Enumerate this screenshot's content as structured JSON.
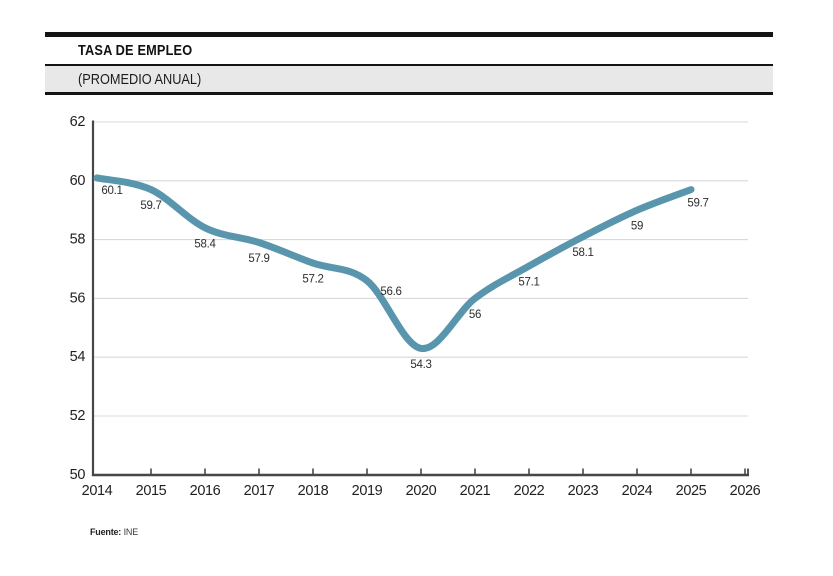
{
  "header": {
    "title": "TASA DE EMPLEO",
    "subtitle": "(PROMEDIO ANUAL)"
  },
  "source": {
    "label": "Fuente:",
    "value": "INE"
  },
  "chart_data": {
    "type": "line",
    "title": "TASA DE EMPLEO (PROMEDIO ANUAL)",
    "x": [
      2014,
      2015,
      2016,
      2017,
      2018,
      2019,
      2020,
      2021,
      2022,
      2023,
      2024,
      2025
    ],
    "values": [
      60.1,
      59.7,
      58.4,
      57.9,
      57.2,
      56.6,
      54.3,
      56,
      57.1,
      58.1,
      59,
      59.7
    ],
    "point_labels": [
      "60.1",
      "59.7",
      "58.4",
      "57.9",
      "57.2",
      "56.6",
      "54.3",
      "56",
      "57.1",
      "58.1",
      "59",
      "59.7"
    ],
    "x_tick_labels": [
      "2014",
      "2015",
      "2016",
      "2017",
      "2018",
      "2019",
      "2020",
      "2021",
      "2022",
      "2023",
      "2024",
      "2025",
      "2026"
    ],
    "x_ticks": [
      2014,
      2015,
      2016,
      2017,
      2018,
      2019,
      2020,
      2021,
      2022,
      2023,
      2024,
      2025,
      2026
    ],
    "y_ticks": [
      62,
      60,
      58,
      56,
      54,
      52,
      50
    ],
    "ylim": [
      50,
      62
    ],
    "xlim": [
      2014,
      2026
    ],
    "xlabel": "",
    "ylabel": "",
    "legend": "none",
    "grid": "horizontal gridlines at y ticks",
    "line_color": "#5996ae",
    "grid_color": "#d9d9d9",
    "axis_color": "#474747",
    "smooth": true
  }
}
